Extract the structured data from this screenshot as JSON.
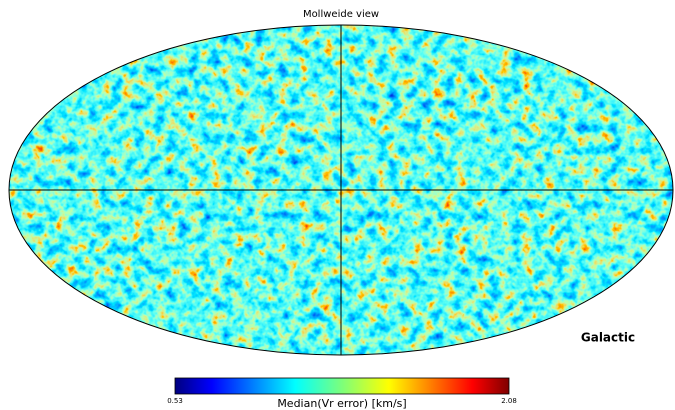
{
  "title": "Mollweide view",
  "coord": "Galactic",
  "colorbar": {
    "label": "Median(Vr error) [km/s]",
    "min": 0.53,
    "max": 2.08
  }
}
